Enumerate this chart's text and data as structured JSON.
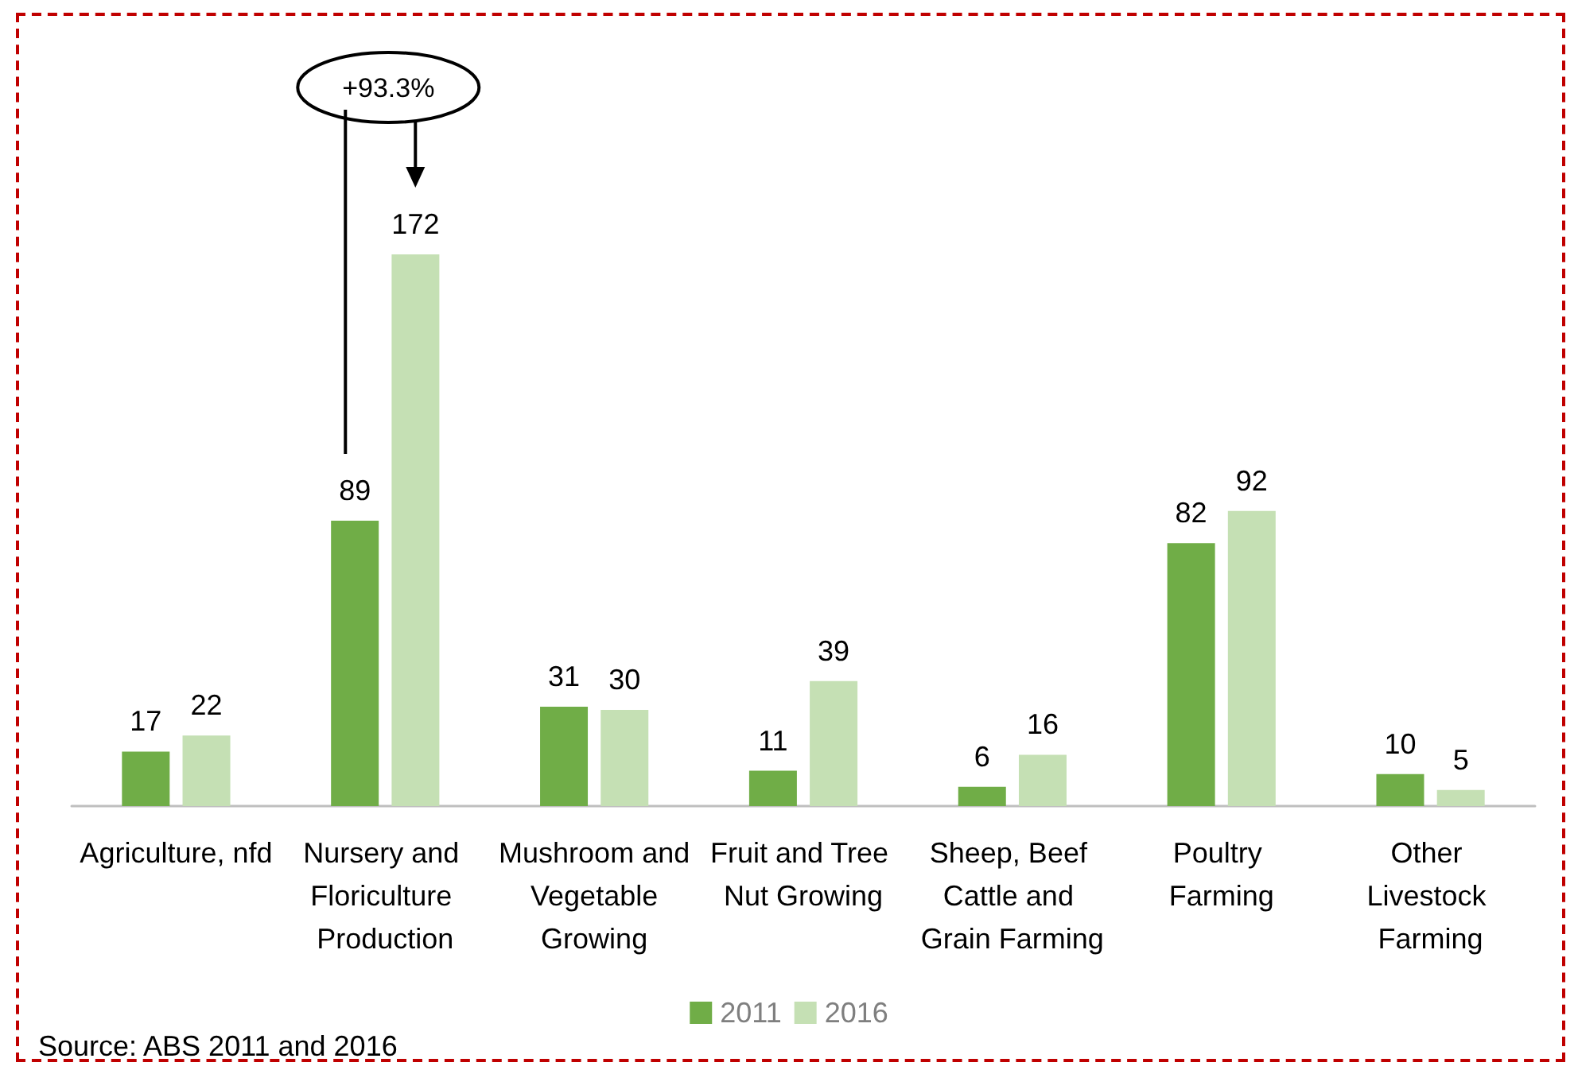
{
  "chart_data": {
    "type": "bar",
    "categories": [
      "Agriculture, nfd",
      "Nursery and Floriculture Production",
      "Mushroom and Vegetable Growing",
      "Fruit and Tree Nut Growing",
      "Sheep, Beef Cattle and Grain Farming",
      "Poultry Farming",
      "Other Livestock Farming"
    ],
    "series": [
      {
        "name": "2011",
        "color": "#70ad47",
        "values": [
          17,
          89,
          31,
          11,
          6,
          82,
          10
        ]
      },
      {
        "name": "2016",
        "color": "#c5e0b4",
        "values": [
          22,
          172,
          30,
          39,
          16,
          92,
          5
        ]
      }
    ],
    "data_labels": true,
    "legend": "bottom",
    "annotations": [
      "+93.3%",
      "Source: ABS 2011 and 2016"
    ]
  }
}
